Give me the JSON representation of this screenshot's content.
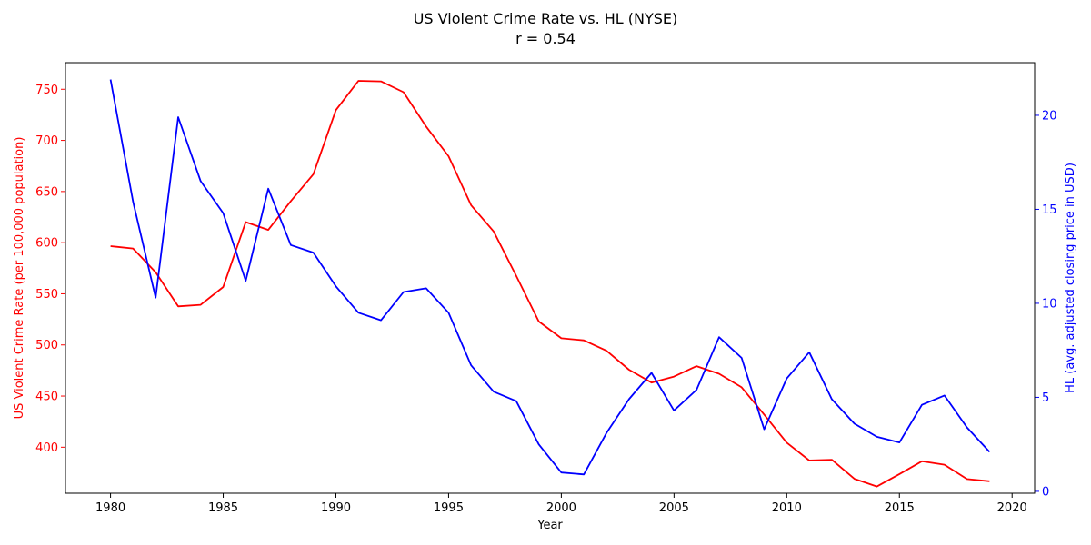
{
  "chart_data": {
    "type": "line",
    "title": "US Violent Crime Rate vs. HL (NYSE)",
    "subtitle": "r = 0.54",
    "xlabel": "Year",
    "ylabel_left": "US Violent Crime Rate (per 100,000 population)",
    "ylabel_right": "HL (avg. adjusted closing price in USD)",
    "xlim": [
      1978,
      2021
    ],
    "ylim_left": [
      355,
      776
    ],
    "ylim_right": [
      -0.1,
      22.8
    ],
    "x_ticks": [
      1980,
      1985,
      1990,
      1995,
      2000,
      2005,
      2010,
      2015,
      2020
    ],
    "y_left_ticks": [
      400,
      450,
      500,
      550,
      600,
      650,
      700,
      750
    ],
    "y_right_ticks": [
      0,
      5,
      10,
      15,
      20
    ],
    "grid": false,
    "colors": {
      "left": "#ff0000",
      "right": "#0000ff"
    },
    "x": [
      1980,
      1981,
      1982,
      1983,
      1984,
      1985,
      1986,
      1987,
      1988,
      1989,
      1990,
      1991,
      1992,
      1993,
      1994,
      1995,
      1996,
      1997,
      1998,
      1999,
      2000,
      2001,
      2002,
      2003,
      2004,
      2005,
      2006,
      2007,
      2008,
      2009,
      2010,
      2011,
      2012,
      2013,
      2014,
      2015,
      2016,
      2017,
      2018,
      2019
    ],
    "series": [
      {
        "axis": "left",
        "values": [
          596.6,
          594.3,
          571.1,
          537.7,
          539.2,
          556.6,
          620.1,
          612.5,
          640.6,
          666.9,
          729.6,
          758.2,
          757.7,
          747.1,
          713.6,
          684.5,
          636.6,
          611.0,
          567.6,
          523.0,
          506.5,
          504.5,
          494.4,
          475.8,
          463.2,
          469.0,
          479.3,
          471.8,
          458.6,
          431.9,
          404.5,
          387.1,
          387.8,
          369.1,
          361.6,
          373.7,
          386.3,
          382.9,
          368.9,
          366.7
        ]
      },
      {
        "axis": "right",
        "values": [
          21.9,
          15.4,
          10.3,
          19.9,
          16.5,
          14.8,
          11.2,
          16.1,
          13.1,
          12.7,
          10.9,
          9.5,
          9.1,
          10.6,
          10.8,
          9.5,
          6.7,
          5.3,
          4.8,
          2.5,
          1.0,
          0.9,
          3.1,
          4.9,
          6.3,
          4.3,
          5.4,
          8.2,
          7.1,
          3.3,
          6.0,
          7.4,
          4.9,
          3.6,
          2.9,
          2.6,
          4.6,
          5.1,
          3.4,
          2.1
        ]
      }
    ]
  }
}
